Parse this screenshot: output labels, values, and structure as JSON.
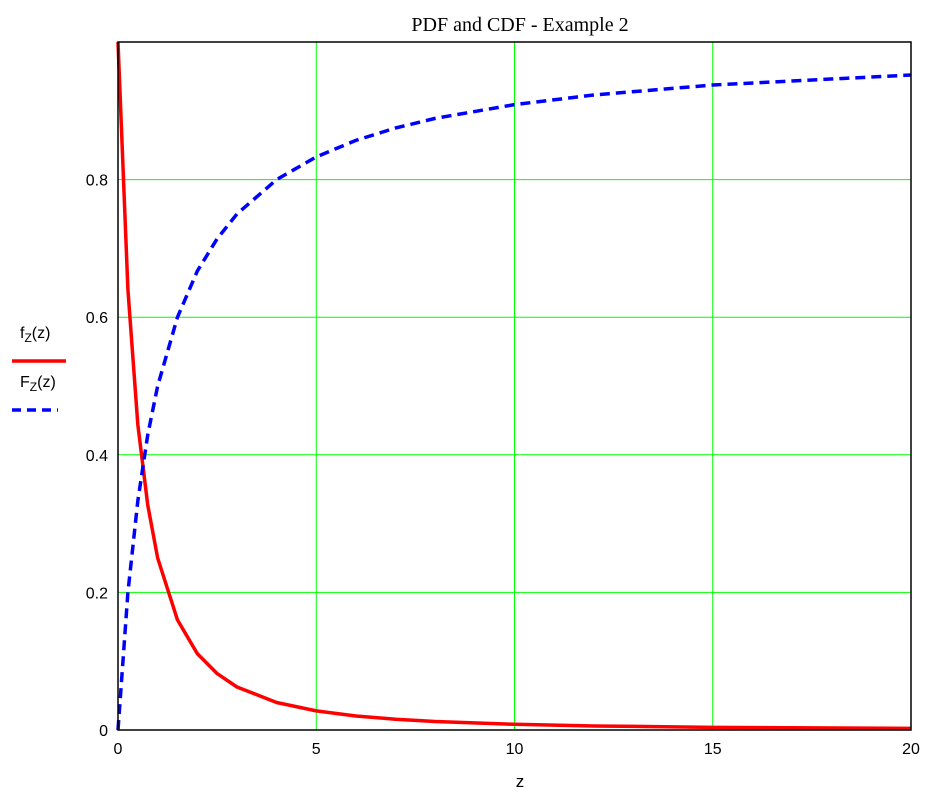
{
  "chart_data": {
    "type": "line",
    "title": "PDF and CDF - Example 2",
    "xlabel": "z",
    "ylabel": "",
    "xlim": [
      0,
      20
    ],
    "ylim": [
      0,
      1
    ],
    "x_ticks": [
      "0",
      "5",
      "10",
      "15",
      "20"
    ],
    "y_ticks": [
      "0",
      "0.2",
      "0.4",
      "0.6",
      "0.8"
    ],
    "grid": true,
    "grid_color": "#00ff00",
    "legend": {
      "position": "left",
      "entries": [
        {
          "main": "f",
          "sub": "Z",
          "rest": "(z)",
          "color": "#ff0000",
          "style": "solid"
        },
        {
          "main": "F",
          "sub": "Z",
          "rest": "(z)",
          "color": "#0000ff",
          "style": "dashed"
        }
      ]
    },
    "series": [
      {
        "label": "f_Z(z)",
        "color": "#ff0000",
        "style": "solid",
        "x": [
          0,
          0.25,
          0.5,
          0.75,
          1,
          1.5,
          2,
          2.5,
          3,
          4,
          5,
          6,
          7,
          8,
          10,
          12,
          15,
          20
        ],
        "y": [
          1,
          0.64,
          0.444,
          0.327,
          0.25,
          0.16,
          0.111,
          0.082,
          0.0625,
          0.04,
          0.0278,
          0.0204,
          0.0156,
          0.0123,
          0.0083,
          0.0059,
          0.0039,
          0.0023
        ]
      },
      {
        "label": "F_Z(z)",
        "color": "#0000ff",
        "style": "dashed",
        "x": [
          0,
          0.25,
          0.5,
          0.75,
          1,
          1.5,
          2,
          2.5,
          3,
          4,
          5,
          6,
          7,
          8,
          10,
          12,
          15,
          20
        ],
        "y": [
          0,
          0.2,
          0.333,
          0.429,
          0.5,
          0.6,
          0.667,
          0.714,
          0.75,
          0.8,
          0.833,
          0.857,
          0.875,
          0.889,
          0.909,
          0.923,
          0.9375,
          0.952
        ]
      }
    ]
  }
}
